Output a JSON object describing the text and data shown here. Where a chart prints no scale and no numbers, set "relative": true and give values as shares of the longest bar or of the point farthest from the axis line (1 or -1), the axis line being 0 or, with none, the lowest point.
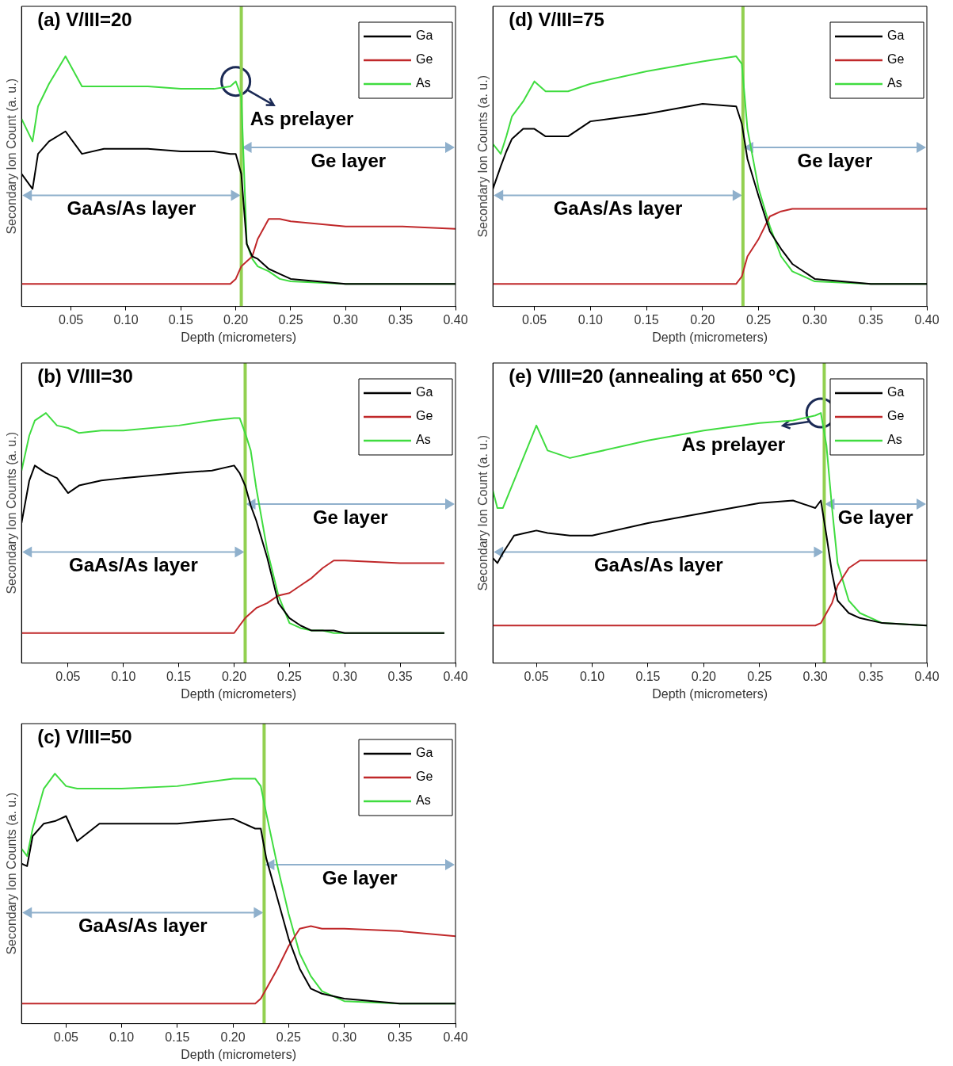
{
  "chart_data": [
    {
      "type": "line",
      "title": "(a) V/III=20",
      "xlabel": "Depth (micrometers)",
      "ylabel": "Secondary Ion Count (a. u.)",
      "relative": true,
      "legend": "top right",
      "xlim": [
        0.005,
        0.4
      ],
      "xticks": [
        0.05,
        {
          "value": 0.1,
          "label": "0.10"
        },
        0.15,
        {
          "value": 0.2,
          "label": "0.20"
        },
        0.25,
        {
          "value": 0.3,
          "label": "0.30"
        },
        0.35,
        {
          "value": 0.4,
          "label": "0.40"
        }
      ],
      "x": [
        0.005,
        0.015,
        0.02,
        0.03,
        0.045,
        0.06,
        0.08,
        0.1,
        0.12,
        0.15,
        0.18,
        0.195,
        0.2,
        0.205,
        0.21,
        0.215,
        0.22,
        0.23,
        0.24,
        0.25,
        0.3,
        0.35,
        0.4
      ],
      "series": [
        {
          "name": "Ga",
          "color": "#000000",
          "values": [
            0.53,
            0.47,
            0.61,
            0.66,
            0.7,
            0.61,
            0.63,
            0.63,
            0.63,
            0.62,
            0.62,
            0.61,
            0.61,
            0.53,
            0.25,
            0.2,
            0.19,
            0.15,
            0.13,
            0.11,
            0.09,
            0.09,
            0.09
          ]
        },
        {
          "name": "Ge",
          "color": "#c0282a",
          "values": [
            0.09,
            0.09,
            0.09,
            0.09,
            0.09,
            0.09,
            0.09,
            0.09,
            0.09,
            0.09,
            0.09,
            0.09,
            0.11,
            0.16,
            0.18,
            0.2,
            0.27,
            0.35,
            0.35,
            0.34,
            0.32,
            0.32,
            0.31
          ]
        },
        {
          "name": "As",
          "color": "#3fdc3f",
          "values": [
            0.75,
            0.66,
            0.8,
            0.89,
            1,
            0.88,
            0.88,
            0.88,
            0.88,
            0.87,
            0.87,
            0.88,
            0.9,
            0.84,
            0.25,
            0.19,
            0.16,
            0.14,
            0.11,
            0.1,
            0.09,
            0.09,
            0.09
          ]
        }
      ],
      "ref_lines": [
        {
          "axis": "x",
          "value": 0.205,
          "color": "#92d050"
        }
      ],
      "annotations": [
        "GaAs/As layer",
        "Ge layer",
        {
          "text": "As prelayer",
          "x": 0.2,
          "y": 0.9
        }
      ]
    },
    {
      "type": "line",
      "title": "(d) V/III=75",
      "xlabel": "Depth (micrometers)",
      "ylabel": "Secondary Ion Counts (a. u.)",
      "relative": true,
      "legend": "top right",
      "xlim": [
        0.013,
        0.4
      ],
      "xticks": [
        0.05,
        {
          "value": 0.1,
          "label": "0.10"
        },
        0.15,
        {
          "value": 0.2,
          "label": "0.20"
        },
        0.25,
        {
          "value": 0.3,
          "label": "0.30"
        },
        0.35,
        {
          "value": 0.4,
          "label": "0.40"
        }
      ],
      "x": [
        0.013,
        0.02,
        0.025,
        0.03,
        0.04,
        0.05,
        0.06,
        0.08,
        0.1,
        0.15,
        0.2,
        0.23,
        0.235,
        0.24,
        0.25,
        0.26,
        0.27,
        0.28,
        0.3,
        0.35,
        0.4
      ],
      "series": [
        {
          "name": "Ga",
          "color": "#000000",
          "values": [
            0.47,
            0.56,
            0.62,
            0.67,
            0.71,
            0.71,
            0.68,
            0.68,
            0.74,
            0.77,
            0.81,
            0.8,
            0.73,
            0.59,
            0.44,
            0.3,
            0.23,
            0.17,
            0.11,
            0.09,
            0.09
          ]
        },
        {
          "name": "Ge",
          "color": "#c0282a",
          "values": [
            0.09,
            0.09,
            0.09,
            0.09,
            0.09,
            0.09,
            0.09,
            0.09,
            0.09,
            0.09,
            0.09,
            0.09,
            0.12,
            0.2,
            0.27,
            0.36,
            0.38,
            0.39,
            0.39,
            0.39,
            0.39
          ]
        },
        {
          "name": "As",
          "color": "#3fdc3f",
          "values": [
            0.65,
            0.61,
            0.68,
            0.76,
            0.82,
            0.9,
            0.86,
            0.86,
            0.89,
            0.94,
            0.98,
            1,
            0.97,
            0.71,
            0.47,
            0.32,
            0.2,
            0.14,
            0.1,
            0.09,
            0.09
          ]
        }
      ],
      "ref_lines": [
        {
          "axis": "x",
          "value": 0.236,
          "color": "#92d050"
        }
      ],
      "annotations": [
        "GaAs/As layer",
        "Ge layer"
      ]
    },
    {
      "type": "line",
      "title": "(b) V/III=30",
      "xlabel": "Depth (micrometers)",
      "ylabel": "Secondary Ion Counts (a. u.)",
      "relative": true,
      "legend": "top right",
      "xlim": [
        0.008,
        0.4
      ],
      "xticks": [
        0.05,
        {
          "value": 0.1,
          "label": "0.10"
        },
        0.15,
        {
          "value": 0.2,
          "label": "0.20"
        },
        0.25,
        {
          "value": 0.3,
          "label": "0.30"
        },
        0.35,
        {
          "value": 0.4,
          "label": "0.40"
        }
      ],
      "x": [
        0.008,
        0.015,
        0.02,
        0.03,
        0.04,
        0.05,
        0.06,
        0.08,
        0.1,
        0.15,
        0.18,
        0.2,
        0.205,
        0.21,
        0.215,
        0.22,
        0.23,
        0.24,
        0.25,
        0.26,
        0.27,
        0.28,
        0.29,
        0.3,
        0.35,
        0.39
      ],
      "series": [
        {
          "name": "Ga",
          "color": "#000000",
          "values": [
            0.56,
            0.73,
            0.79,
            0.76,
            0.74,
            0.68,
            0.71,
            0.73,
            0.74,
            0.76,
            0.77,
            0.79,
            0.76,
            0.71,
            0.63,
            0.57,
            0.42,
            0.24,
            0.18,
            0.15,
            0.13,
            0.13,
            0.13,
            0.12,
            0.12,
            0.12
          ]
        },
        {
          "name": "Ge",
          "color": "#c0282a",
          "values": [
            0.12,
            0.12,
            0.12,
            0.12,
            0.12,
            0.12,
            0.12,
            0.12,
            0.12,
            0.12,
            0.12,
            0.12,
            0.15,
            0.18,
            0.2,
            0.22,
            0.24,
            0.27,
            0.28,
            0.31,
            0.34,
            0.38,
            0.41,
            0.41,
            0.4,
            0.4
          ]
        },
        {
          "name": "As",
          "color": "#3fdc3f",
          "values": [
            0.77,
            0.91,
            0.97,
            1,
            0.95,
            0.94,
            0.92,
            0.93,
            0.93,
            0.95,
            0.97,
            0.98,
            0.98,
            0.92,
            0.85,
            0.7,
            0.45,
            0.27,
            0.16,
            0.14,
            0.13,
            0.13,
            0.12,
            0.12,
            0.12,
            0.12
          ]
        }
      ],
      "ref_lines": [
        {
          "axis": "x",
          "value": 0.21,
          "color": "#92d050"
        }
      ],
      "annotations": [
        "GaAs/As layer",
        "Ge layer"
      ]
    },
    {
      "type": "line",
      "title": "(e) V/III=20 (annealing at 650 °C)",
      "xlabel": "Depth (micrometers)",
      "ylabel": "Secondary Ion Count (a. u.)",
      "relative": true,
      "legend": "top right",
      "xlim": [
        0.011,
        0.4
      ],
      "xticks": [
        0.05,
        {
          "value": 0.1,
          "label": "0.10"
        },
        0.15,
        {
          "value": 0.2,
          "label": "0.20"
        },
        0.25,
        {
          "value": 0.3,
          "label": "0.30"
        },
        0.35,
        {
          "value": 0.4,
          "label": "0.40"
        }
      ],
      "x": [
        0.011,
        0.015,
        0.02,
        0.03,
        0.04,
        0.05,
        0.06,
        0.08,
        0.1,
        0.15,
        0.2,
        0.25,
        0.28,
        0.3,
        0.305,
        0.31,
        0.315,
        0.32,
        0.33,
        0.34,
        0.36,
        0.4
      ],
      "series": [
        {
          "name": "Ga",
          "color": "#000000",
          "values": [
            0.42,
            0.4,
            0.44,
            0.51,
            0.52,
            0.53,
            0.52,
            0.51,
            0.51,
            0.56,
            0.6,
            0.64,
            0.65,
            0.62,
            0.65,
            0.51,
            0.36,
            0.25,
            0.2,
            0.18,
            0.16,
            0.15
          ]
        },
        {
          "name": "Ge",
          "color": "#c0282a",
          "values": [
            0.15,
            0.15,
            0.15,
            0.15,
            0.15,
            0.15,
            0.15,
            0.15,
            0.15,
            0.15,
            0.15,
            0.15,
            0.15,
            0.15,
            0.16,
            0.2,
            0.24,
            0.31,
            0.38,
            0.41,
            0.41,
            0.41
          ]
        },
        {
          "name": "As",
          "color": "#3fdc3f",
          "values": [
            0.69,
            0.62,
            0.62,
            0.73,
            0.84,
            0.95,
            0.85,
            0.82,
            0.84,
            0.89,
            0.93,
            0.96,
            0.97,
            0.99,
            1,
            0.87,
            0.62,
            0.4,
            0.25,
            0.2,
            0.16,
            0.15
          ]
        }
      ],
      "ref_lines": [
        {
          "axis": "x",
          "value": 0.308,
          "color": "#92d050"
        }
      ],
      "annotations": [
        "GaAs/As layer",
        "Ge layer",
        {
          "text": "As prelayer",
          "x": 0.305,
          "y": 1
        }
      ]
    },
    {
      "type": "line",
      "title": "(c) V/III=50",
      "xlabel": "Depth (micrometers)",
      "ylabel": "Secondary Ion Counts (a. u.)",
      "relative": true,
      "legend": "top right",
      "xlim": [
        0.01,
        0.4
      ],
      "xticks": [
        0.05,
        {
          "value": 0.1,
          "label": "0.10"
        },
        0.15,
        {
          "value": 0.2,
          "label": "0.20"
        },
        0.25,
        {
          "value": 0.3,
          "label": "0.30"
        },
        0.35,
        {
          "value": 0.4,
          "label": "0.40"
        }
      ],
      "x": [
        0.01,
        0.015,
        0.02,
        0.03,
        0.04,
        0.05,
        0.06,
        0.08,
        0.1,
        0.15,
        0.2,
        0.22,
        0.225,
        0.23,
        0.24,
        0.25,
        0.26,
        0.27,
        0.28,
        0.3,
        0.35,
        0.4
      ],
      "series": [
        {
          "name": "Ga",
          "color": "#000000",
          "values": [
            0.64,
            0.63,
            0.75,
            0.8,
            0.81,
            0.83,
            0.73,
            0.8,
            0.8,
            0.8,
            0.82,
            0.78,
            0.78,
            0.66,
            0.5,
            0.34,
            0.22,
            0.14,
            0.12,
            0.1,
            0.08,
            0.08
          ]
        },
        {
          "name": "Ge",
          "color": "#c0282a",
          "values": [
            0.08,
            0.08,
            0.08,
            0.08,
            0.08,
            0.08,
            0.08,
            0.08,
            0.08,
            0.08,
            0.08,
            0.08,
            0.1,
            0.14,
            0.22,
            0.31,
            0.38,
            0.39,
            0.38,
            0.38,
            0.37,
            0.35
          ]
        },
        {
          "name": "As",
          "color": "#3fdc3f",
          "values": [
            0.7,
            0.67,
            0.78,
            0.94,
            1,
            0.95,
            0.94,
            0.94,
            0.94,
            0.95,
            0.98,
            0.98,
            0.95,
            0.84,
            0.63,
            0.44,
            0.28,
            0.19,
            0.13,
            0.09,
            0.08,
            0.08
          ]
        }
      ],
      "ref_lines": [
        {
          "axis": "x",
          "value": 0.228,
          "color": "#92d050"
        }
      ],
      "annotations": [
        "GaAs/As layer",
        "Ge layer"
      ]
    }
  ]
}
